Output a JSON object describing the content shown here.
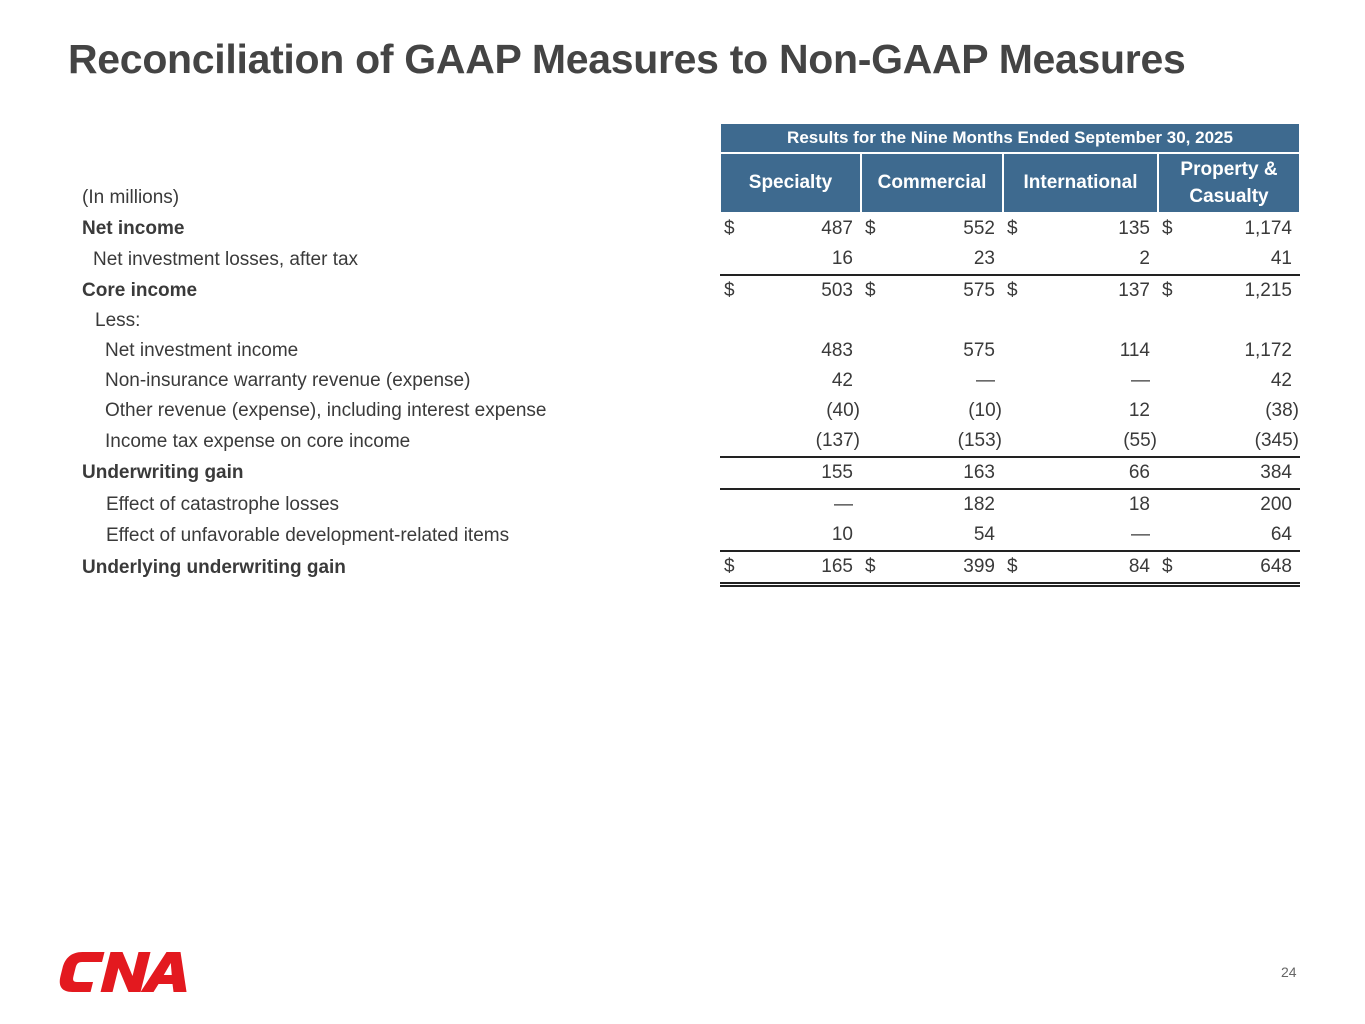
{
  "title": "Reconciliation of GAAP Measures to Non-GAAP Measures",
  "table": {
    "period_header": "Results for the Nine Months Ended September 30, 2025",
    "units_label": "(In millions)",
    "columns": [
      "Specialty",
      "Commercial",
      "International",
      "Property & Casualty"
    ],
    "rows": [
      {
        "label": "Net income",
        "values": [
          "487",
          "552",
          "135",
          "1,174"
        ],
        "dollar": true
      },
      {
        "label": "Net investment losses, after tax",
        "values": [
          "16",
          "23",
          "2",
          "41"
        ]
      },
      {
        "label": "Core income",
        "values": [
          "503",
          "575",
          "137",
          "1,215"
        ],
        "dollar": true
      },
      {
        "label": "Less:",
        "values": [
          "",
          "",
          "",
          ""
        ]
      },
      {
        "label": "Net investment income",
        "values": [
          "483",
          "575",
          "114",
          "1,172"
        ]
      },
      {
        "label": "Non-insurance warranty revenue (expense)",
        "values": [
          "42",
          "—",
          "—",
          "42"
        ]
      },
      {
        "label": "Other revenue (expense), including interest expense",
        "values": [
          "(40)",
          "(10)",
          "12",
          "(38)"
        ]
      },
      {
        "label": "Income tax expense on core income",
        "values": [
          "(137)",
          "(153)",
          "(55)",
          "(345)"
        ]
      },
      {
        "label": "Underwriting gain",
        "values": [
          "155",
          "163",
          "66",
          "384"
        ]
      },
      {
        "label": "Effect of catastrophe losses",
        "values": [
          "—",
          "182",
          "18",
          "200"
        ]
      },
      {
        "label": "Effect of unfavorable development-related items",
        "values": [
          "10",
          "54",
          "—",
          "64"
        ]
      },
      {
        "label": "Underlying underwriting gain",
        "values": [
          "165",
          "399",
          "84",
          "648"
        ],
        "dollar": true
      }
    ],
    "currency_symbol": "$"
  },
  "logo_text": "CNA",
  "page_number": "24",
  "colors": {
    "header_bg": "#3e6a8f",
    "logo_red": "#e3191f"
  }
}
